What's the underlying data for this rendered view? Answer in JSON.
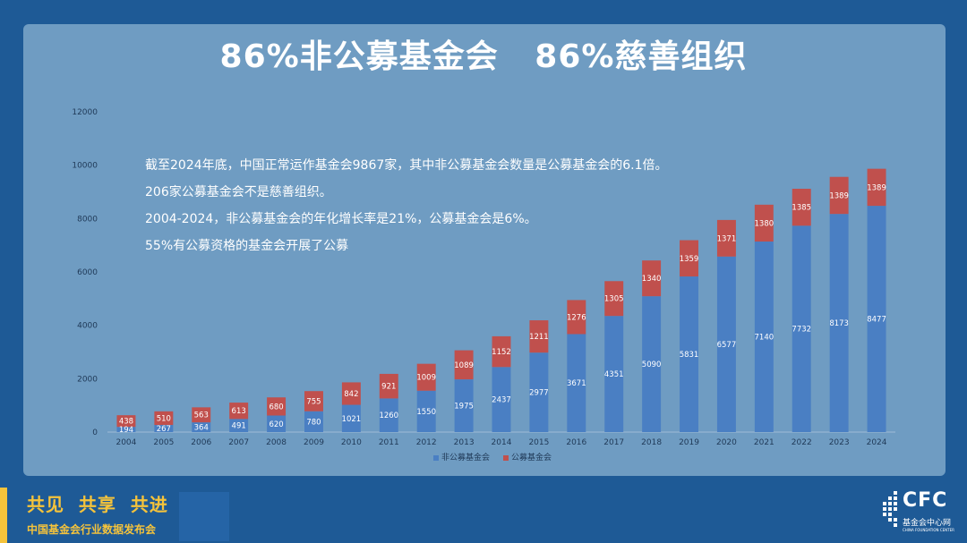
{
  "slide": {
    "title": "86%非公募基金会   86%慈善组织",
    "notes": [
      "截至2024年底，中国正常运作基金会9867家，其中非公募基金会数量是公募基金会的6.1倍。",
      "206家公募基金会不是慈善组织。",
      "2004-2024，非公募基金会的年化增长率是21%，公募基金会是6%。",
      "55%有公募资格的基金会开展了公募"
    ],
    "slogan": "共见  共享  共进",
    "subslogan": "中国基金会行业数据发布会",
    "logo": {
      "text": "CFC",
      "name": "基金会中心网",
      "en": "CHINA FOUNDATION CENTER"
    }
  },
  "colors": {
    "background": "#1e5a96",
    "panel": "#6f9cc2",
    "accent": "#f5c33b",
    "nonPublic": "#4a7fc3",
    "public": "#c0504d"
  },
  "chart_data": {
    "type": "bar",
    "stacked": true,
    "categories": [
      "2004",
      "2005",
      "2006",
      "2007",
      "2008",
      "2009",
      "2010",
      "2011",
      "2012",
      "2013",
      "2014",
      "2015",
      "2016",
      "2017",
      "2018",
      "2019",
      "2020",
      "2021",
      "2022",
      "2023",
      "2024"
    ],
    "series": [
      {
        "name": "非公募基金会",
        "color": "#4a7fc3",
        "values": [
          194,
          267,
          364,
          491,
          620,
          780,
          1021,
          1260,
          1550,
          1975,
          2437,
          2977,
          3671,
          4351,
          5090,
          5831,
          6577,
          7140,
          7732,
          8173,
          8477
        ]
      },
      {
        "name": "公募基金会",
        "color": "#c0504d",
        "values": [
          438,
          510,
          563,
          613,
          680,
          755,
          842,
          921,
          1009,
          1089,
          1152,
          1211,
          1276,
          1305,
          1340,
          1359,
          1371,
          1380,
          1385,
          1389,
          1389
        ]
      }
    ],
    "ylim": [
      0,
      12000
    ],
    "yticks": [
      0,
      2000,
      4000,
      6000,
      8000,
      10000,
      12000
    ],
    "legend": "bottom",
    "grid": false
  }
}
